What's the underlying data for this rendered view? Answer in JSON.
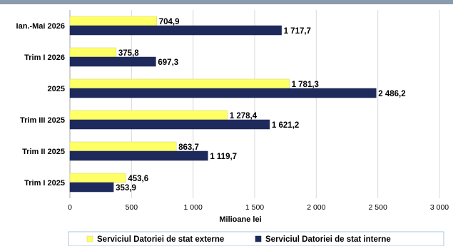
{
  "chart_data": {
    "type": "bar",
    "orientation": "horizontal",
    "title": "",
    "xlabel": "Milioane lei",
    "ylabel": "",
    "xlim": [
      0,
      3000
    ],
    "xticks": [
      0,
      500,
      1000,
      1500,
      2000,
      2500,
      3000
    ],
    "xtick_labels": [
      "0",
      "500",
      "1 000",
      "1 500",
      "2 000",
      "2 500",
      "3 000"
    ],
    "grid": true,
    "legend_position": "bottom",
    "categories": [
      "Ian.-Mai 2026",
      "Trim I 2026",
      "2025",
      "Trim III 2025",
      "Trim II 2025",
      "Trim I 2025"
    ],
    "series": [
      {
        "name": "Serviciul Datoriei de stat externe",
        "color": "#ffff66",
        "values": [
          704.9,
          375.8,
          1781.3,
          1278.4,
          863.7,
          453.6
        ],
        "labels": [
          "704,9",
          "375,8",
          "1 781,3",
          "1 278,4",
          "863,7",
          "453,6"
        ]
      },
      {
        "name": "Serviciul Datoriei de stat interne",
        "color": "#1f2a5c",
        "values": [
          1717.7,
          697.3,
          2486.2,
          1621.2,
          1119.7,
          353.9
        ],
        "labels": [
          "1 717,7",
          "697,3",
          "2 486,2",
          "1 621,2",
          "1 119,7",
          "353,9"
        ]
      }
    ]
  }
}
